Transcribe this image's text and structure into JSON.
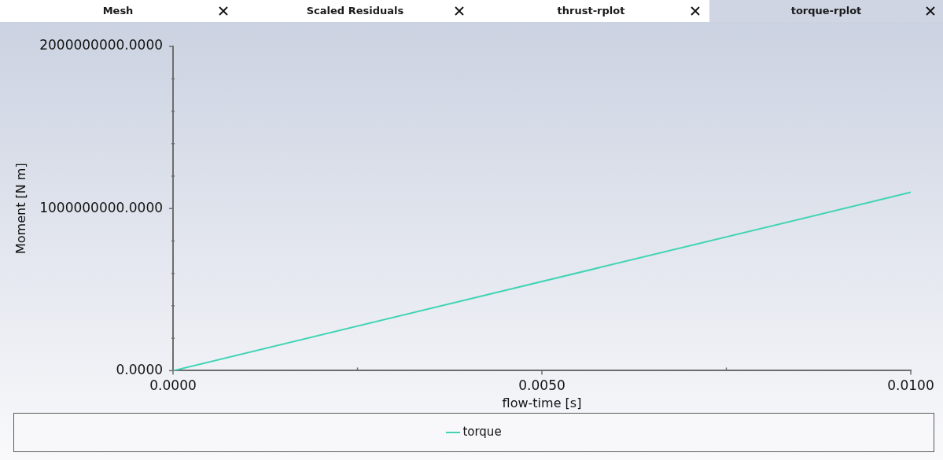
{
  "chart_data": {
    "type": "line",
    "xlabel": "flow-time [s]",
    "ylabel": "Moment [N m]",
    "annotations": [
      "Mesh",
      "Scaled Residuals",
      "thrust-rplot",
      "torque-rplot"
    ],
    "x": [
      0,
      0.01
    ],
    "series": [
      {
        "name": "torque",
        "color": "#40d4b4",
        "values": [
          0,
          1100000000
        ]
      }
    ],
    "xlim": [
      0,
      0.01
    ],
    "ylim": [
      0,
      2000000000
    ],
    "xticks": [
      {
        "value": 0,
        "label": "0.0000"
      },
      {
        "value": 0.0025,
        "label": null
      },
      {
        "value": 0.005,
        "label": "0.0050"
      },
      {
        "value": 0.0075,
        "label": null
      },
      {
        "value": 0.01,
        "label": "0.0100"
      }
    ],
    "yticks": [
      {
        "value": 0,
        "label": "0.0000"
      },
      {
        "value": 200000000,
        "label": null
      },
      {
        "value": 400000000,
        "label": null
      },
      {
        "value": 600000000,
        "label": null
      },
      {
        "value": 800000000,
        "label": null
      },
      {
        "value": 1000000000,
        "label": "1000000000.0000"
      },
      {
        "value": 1200000000,
        "label": null
      },
      {
        "value": 1400000000,
        "label": null
      },
      {
        "value": 1600000000,
        "label": null
      },
      {
        "value": 1800000000,
        "label": null
      },
      {
        "value": 2000000000,
        "label": "2000000000.0000"
      }
    ],
    "legend": "bottom",
    "marker": "none"
  }
}
